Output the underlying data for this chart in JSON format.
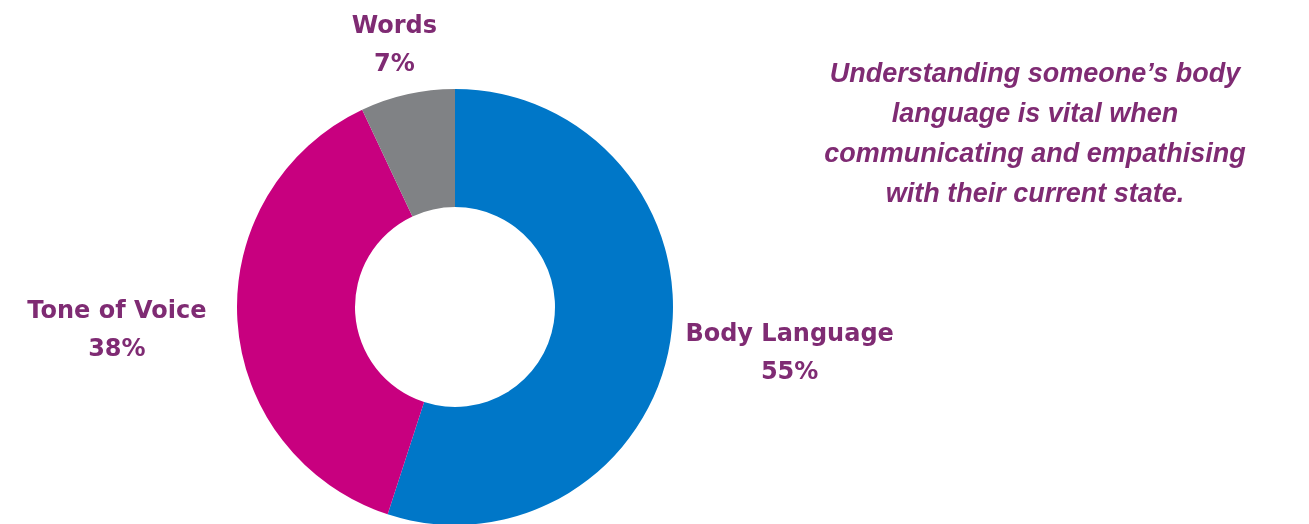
{
  "chart_data": {
    "type": "donut",
    "categories": [
      "Body Language",
      "Tone of Voice",
      "Words"
    ],
    "values": [
      55,
      38,
      7
    ],
    "value_labels": [
      "55%",
      "38%",
      "7%"
    ],
    "colors": [
      "#0077c8",
      "#c8007f",
      "#808285"
    ],
    "annotations": [
      "Understanding someone’s body language is vital when communicating and empathising with their current state."
    ]
  }
}
